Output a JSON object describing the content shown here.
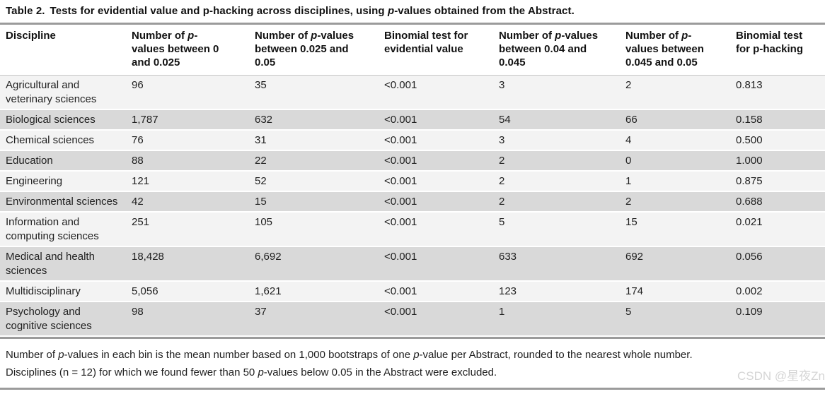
{
  "title": {
    "label": "Table 2.",
    "text": "Tests for evidential value and p-hacking across disciplines, using *p*-values obtained from the Abstract."
  },
  "table": {
    "columns": [
      {
        "label": "Discipline"
      },
      {
        "label": "Number of *p*-values between 0 and 0.025"
      },
      {
        "label": "Number of *p*-values between 0.025 and 0.05"
      },
      {
        "label": "Binomial test for evidential value"
      },
      {
        "label": "Number of *p*-values between 0.04 and 0.045"
      },
      {
        "label": "Number of *p*-values between 0.045 and 0.05"
      },
      {
        "label": "Binomial test for p-hacking"
      }
    ],
    "rows": [
      {
        "cells": [
          "Agricultural and veterinary sciences",
          "96",
          "35",
          "<0.001",
          "3",
          "2",
          "0.813"
        ]
      },
      {
        "cells": [
          "Biological sciences",
          "1,787",
          "632",
          "<0.001",
          "54",
          "66",
          "0.158"
        ]
      },
      {
        "cells": [
          "Chemical sciences",
          "76",
          "31",
          "<0.001",
          "3",
          "4",
          "0.500"
        ]
      },
      {
        "cells": [
          "Education",
          "88",
          "22",
          "<0.001",
          "2",
          "0",
          "1.000"
        ]
      },
      {
        "cells": [
          "Engineering",
          "121",
          "52",
          "<0.001",
          "2",
          "1",
          "0.875"
        ]
      },
      {
        "cells": [
          "Environmental sciences",
          "42",
          "15",
          "<0.001",
          "2",
          "2",
          "0.688"
        ]
      },
      {
        "cells": [
          "Information and computing sciences",
          "251",
          "105",
          "<0.001",
          "5",
          "15",
          "0.021"
        ]
      },
      {
        "cells": [
          "Medical and health sciences",
          "18,428",
          "6,692",
          "<0.001",
          "633",
          "692",
          "0.056"
        ]
      },
      {
        "cells": [
          "Multidisciplinary",
          "5,056",
          "1,621",
          "<0.001",
          "123",
          "174",
          "0.002"
        ]
      },
      {
        "cells": [
          "Psychology and cognitive sciences",
          "98",
          "37",
          "<0.001",
          "1",
          "5",
          "0.109"
        ]
      }
    ]
  },
  "footnotes": [
    "Number of *p*-values in each bin is the mean number based on 1,000 bootstraps of one *p*-value per Abstract, rounded to the nearest whole number.",
    "Disciplines (n = 12) for which we found fewer than 50 *p*-values below 0.05 in the Abstract were excluded.",
    "Zn"
  ],
  "watermark": "CSDN @星夜Zn",
  "colors": {
    "row_light": "#f3f3f3",
    "row_dark": "#d9d9d9",
    "rule_gray": "#9b9b9b",
    "header_divider": "#c6c6c6",
    "watermark_gray": "#d5d5d5",
    "text": "#1c1c1c"
  }
}
